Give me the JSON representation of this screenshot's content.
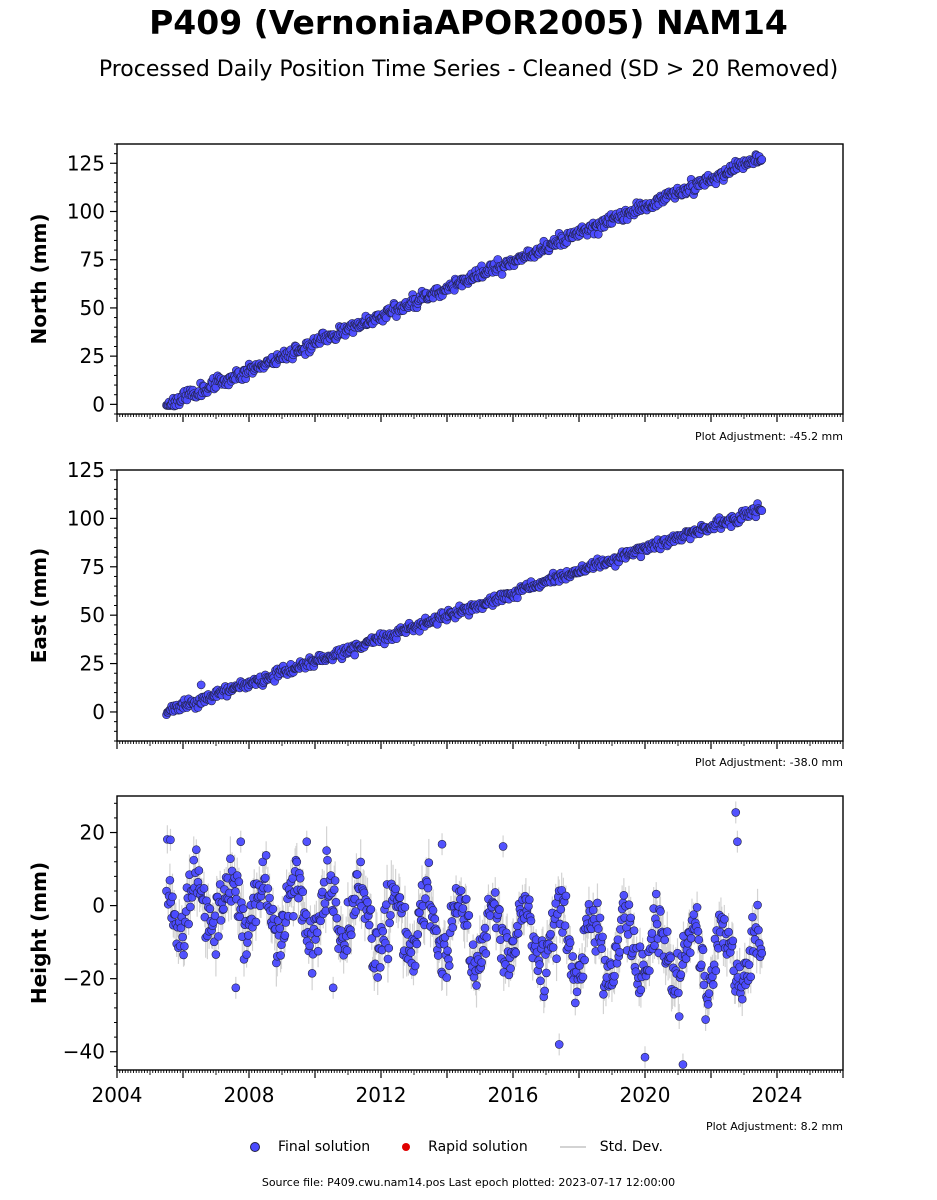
{
  "title": "P409 (VernoniaAPOR2005) NAM14",
  "subtitle": "Processed Daily Position Time Series - Cleaned (SD > 20 Removed)",
  "colors": {
    "final": "#4a4aff",
    "rapid": "#e00000",
    "stddev": "#d3d3d3",
    "edge": "#222244"
  },
  "legend": {
    "final": "Final solution",
    "rapid": "Rapid solution",
    "stddev": "Std. Dev."
  },
  "footer": "Source file: P409.cwu.nam14.pos  Last epoch plotted: 2023-07-17 12:00:00",
  "chart_data": [
    {
      "type": "scatter",
      "ylabel": "North (mm)",
      "xlim": [
        2004,
        2026
      ],
      "ylim": [
        -5,
        135
      ],
      "yticks": [
        0,
        25,
        50,
        75,
        100,
        125
      ],
      "show_xtick_labels": false,
      "adjustment": "Plot Adjustment: -45.2 mm",
      "series": [
        {
          "kind": "trend",
          "start_year": 2005.5,
          "end_year": 2023.54,
          "start": 0,
          "end": 128,
          "noise": 1.6,
          "std": 1.2,
          "seed": 11
        }
      ],
      "outliers": []
    },
    {
      "type": "scatter",
      "ylabel": "East (mm)",
      "xlim": [
        2004,
        2026
      ],
      "ylim": [
        -15,
        125
      ],
      "yticks": [
        0,
        25,
        50,
        75,
        100,
        125
      ],
      "show_xtick_labels": false,
      "adjustment": "Plot Adjustment: -38.0 mm",
      "series": [
        {
          "kind": "trend",
          "start_year": 2005.5,
          "end_year": 2023.54,
          "start": 0,
          "end": 105,
          "noise": 1.3,
          "std": 1.4,
          "seed": 23
        }
      ],
      "outliers": [
        {
          "x": 2006.55,
          "y": 14
        }
      ]
    },
    {
      "type": "scatter",
      "ylabel": "Height (mm)",
      "xlim": [
        2004,
        2026
      ],
      "ylim": [
        -45,
        30
      ],
      "yticks": [
        -40,
        -20,
        0,
        20
      ],
      "show_xtick_labels": true,
      "xticks": [
        2004,
        2008,
        2012,
        2016,
        2020,
        2024
      ],
      "adjustment": "Plot Adjustment: 8.2 mm",
      "series": [
        {
          "kind": "seasonal",
          "start_year": 2005.5,
          "end_year": 2023.54,
          "start": 2,
          "end": -15,
          "amplitude": 8,
          "phase": 0.6,
          "noise": 4.2,
          "std": 4.5,
          "seed": 37
        }
      ],
      "outliers": [
        {
          "x": 2005.62,
          "y": 18
        },
        {
          "x": 2007.75,
          "y": 17.5
        },
        {
          "x": 2009.75,
          "y": 17.5
        },
        {
          "x": 2013.85,
          "y": 16.8
        },
        {
          "x": 2015.7,
          "y": 16.2
        },
        {
          "x": 2022.75,
          "y": 25.5
        },
        {
          "x": 2022.8,
          "y": 17.5
        },
        {
          "x": 2017.4,
          "y": -38
        },
        {
          "x": 2020.0,
          "y": -41.5
        },
        {
          "x": 2021.15,
          "y": -43.5
        },
        {
          "x": 2007.6,
          "y": -22.5
        },
        {
          "x": 2010.55,
          "y": -22.5
        }
      ]
    }
  ]
}
